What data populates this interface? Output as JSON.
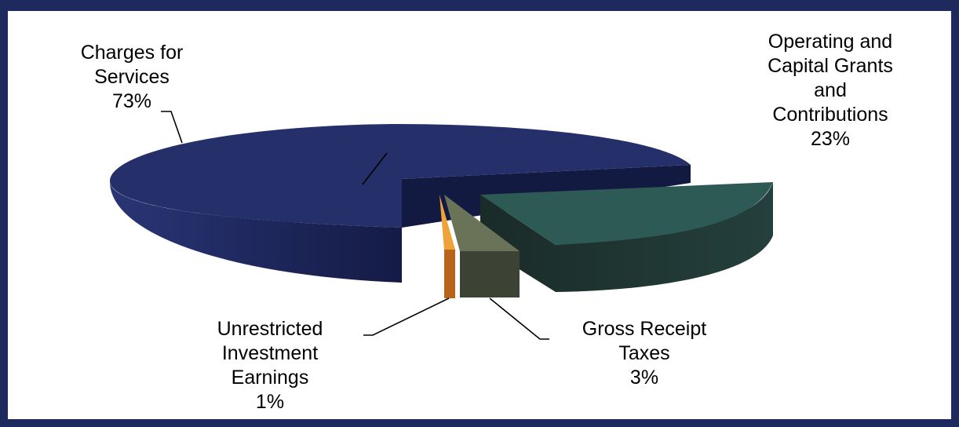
{
  "chart_data": {
    "type": "pie",
    "style": "3d-exploded",
    "slices": [
      {
        "key": "charges",
        "lines": [
          "Charges for",
          "Services"
        ],
        "pct_label": "73%",
        "value": 73,
        "color": "#25306a"
      },
      {
        "key": "grants",
        "lines": [
          "Operating and",
          "Capital Grants",
          "and",
          "Contributions"
        ],
        "pct_label": "23%",
        "value": 23,
        "color": "#2e5a55"
      },
      {
        "key": "gross",
        "lines": [
          "Gross Receipt",
          "Taxes"
        ],
        "pct_label": "3%",
        "value": 3,
        "color": "#6a7358"
      },
      {
        "key": "unrestricted",
        "lines": [
          "Unrestricted",
          "Investment",
          "Earnings"
        ],
        "pct_label": "1%",
        "value": 1,
        "color": "#e8902a"
      }
    ]
  }
}
